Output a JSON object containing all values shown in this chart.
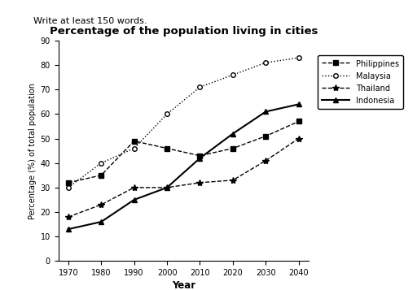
{
  "title": "Percentage of the population living in cities",
  "xlabel": "Year",
  "ylabel": "Percentage (%) of total population",
  "years": [
    1970,
    1980,
    1990,
    2000,
    2010,
    2020,
    2030,
    2040
  ],
  "philippines": [
    32,
    35,
    49,
    46,
    43,
    46,
    51,
    57
  ],
  "malaysia": [
    30,
    40,
    46,
    60,
    71,
    76,
    81,
    83
  ],
  "thailand": [
    18,
    23,
    30,
    30,
    32,
    33,
    41,
    50
  ],
  "indonesia": [
    13,
    16,
    25,
    30,
    42,
    52,
    61,
    64
  ],
  "ylim": [
    0,
    90
  ],
  "yticks": [
    0,
    10,
    20,
    30,
    40,
    50,
    60,
    70,
    80,
    90
  ],
  "color": "black",
  "top_text": "Write at least 150 words.",
  "fig_width": 5.12,
  "fig_height": 3.57
}
